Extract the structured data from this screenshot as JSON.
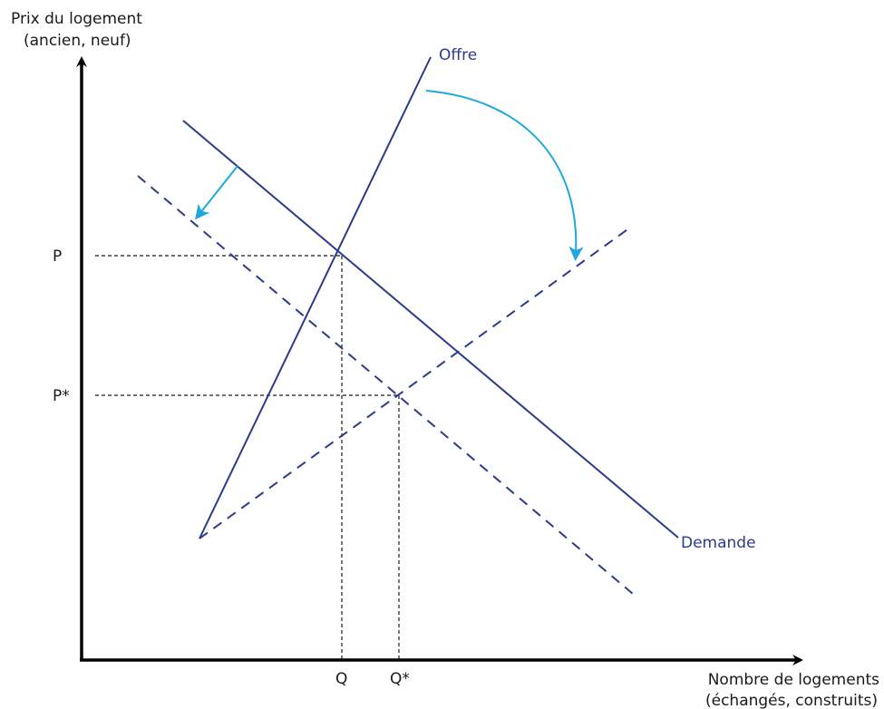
{
  "y_axis_label_line1": "Prix du logement",
  "y_axis_label_line2": "(ancien, neuf)",
  "x_axis_label_line1": "Nombre de logements",
  "x_axis_label_line2": "(échangés, construits)",
  "supply_label": "Offre",
  "demand_label": "Demande",
  "price_initial": "P",
  "price_new": "P*",
  "quantity_initial": "Q",
  "quantity_new": "Q*",
  "colors": {
    "axis": "#000000",
    "curve": "#2b3a8c",
    "shift_arrow": "#1ea7e1",
    "guide": "#1a1a1a"
  }
}
